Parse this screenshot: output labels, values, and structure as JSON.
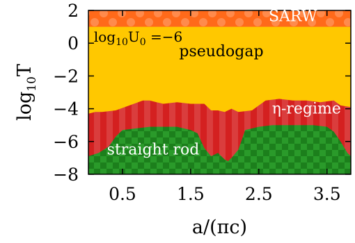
{
  "chart_data": {
    "type": "area",
    "title": "",
    "xlabel": "a/(πc)",
    "ylabel_main": "log",
    "ylabel_sub": "10",
    "ylabel_tail": "T",
    "xlim": [
      0,
      3.85
    ],
    "ylim": [
      -8,
      2
    ],
    "xticks": [
      {
        "value": 0.5,
        "label": "0.5"
      },
      {
        "value": 1.5,
        "label": "1.5"
      },
      {
        "value": 2.5,
        "label": "2.5"
      },
      {
        "value": 3.5,
        "label": "3.5"
      }
    ],
    "yticks": [
      {
        "value": 2,
        "label": "2"
      },
      {
        "value": 0,
        "label": "0"
      },
      {
        "value": -2,
        "label": "−2"
      },
      {
        "value": -4,
        "label": "−4"
      },
      {
        "value": -6,
        "label": "−6"
      },
      {
        "value": -8,
        "label": "−8"
      }
    ],
    "parameter": {
      "main": "log",
      "sub1": "10",
      "mid": "U",
      "sub2": "0",
      "tail": " =−6"
    },
    "regions": [
      {
        "name": "SARW",
        "color": "#ff6a1a",
        "pattern": "dots"
      },
      {
        "name": "pseudogap",
        "color": "#ffc800",
        "pattern": "solid"
      },
      {
        "name": "η-regime",
        "color": "#d42020",
        "pattern": "stripes"
      },
      {
        "name": "straight rod",
        "color": "#2a9a2a",
        "pattern": "checker"
      }
    ],
    "boundaries": {
      "sarw_pseudogap": {
        "x": [
          0,
          3.85
        ],
        "y": [
          1,
          1
        ]
      },
      "pseudogap_eta": {
        "x": [
          0,
          0.1,
          0.2,
          0.4,
          0.6,
          0.8,
          0.9,
          1.0,
          1.1,
          1.3,
          1.5,
          1.7,
          1.8,
          1.9,
          2.0,
          2.1,
          2.2,
          2.4,
          2.5,
          2.6,
          2.8,
          3.0,
          3.2,
          3.4,
          3.6,
          3.7,
          3.85
        ],
        "y": [
          -4.3,
          -4.2,
          -4.2,
          -4.1,
          -3.8,
          -3.5,
          -3.5,
          -3.6,
          -3.7,
          -3.6,
          -3.7,
          -3.7,
          -4.1,
          -4.1,
          -4.2,
          -4.0,
          -4.2,
          -4.1,
          -3.8,
          -3.5,
          -3.4,
          -3.5,
          -3.5,
          -3.6,
          -3.5,
          -3.8,
          -3.9
        ]
      },
      "eta_rod": {
        "x": [
          0,
          0.15,
          0.3,
          0.4,
          0.5,
          0.7,
          0.9,
          1.1,
          1.3,
          1.5,
          1.6,
          1.7,
          1.8,
          1.9,
          2.0,
          2.05,
          2.1,
          2.2,
          2.3,
          2.5,
          2.7,
          2.9,
          3.1,
          3.3,
          3.5,
          3.6,
          3.7,
          3.8,
          3.85
        ],
        "y": [
          -6.9,
          -6.7,
          -6.3,
          -5.7,
          -5.3,
          -5.2,
          -5.1,
          -5.1,
          -5.1,
          -5.3,
          -5.5,
          -6.4,
          -6.9,
          -6.7,
          -7.1,
          -7.2,
          -7.0,
          -6.5,
          -5.3,
          -5.1,
          -5.0,
          -5.0,
          -5.0,
          -5.0,
          -5.1,
          -5.4,
          -6.0,
          -6.7,
          -6.9
        ]
      }
    }
  }
}
